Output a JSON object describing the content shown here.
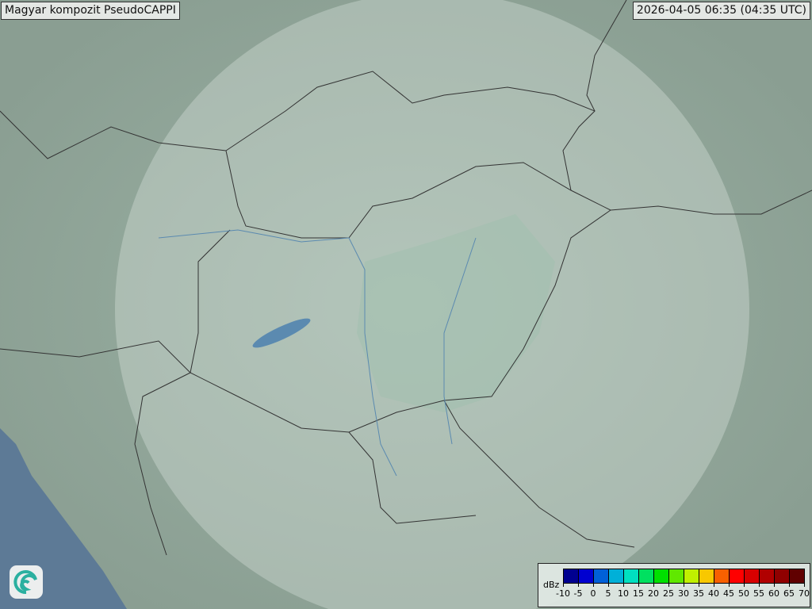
{
  "header": {
    "title": "Magyar kompozit  PseudoCAPPI",
    "timestamp": "2026-04-05 06:35 (04:35 UTC)"
  },
  "legend": {
    "unit": "dBz",
    "labels": [
      "-10",
      "-5",
      "0",
      "5",
      "10",
      "15",
      "20",
      "25",
      "30",
      "35",
      "40",
      "45",
      "50",
      "55",
      "60",
      "65",
      "70"
    ],
    "colors": [
      "#000090",
      "#0000d0",
      "#0060d8",
      "#00b0d8",
      "#00e0c0",
      "#00e060",
      "#00e000",
      "#60e800",
      "#c0f000",
      "#f8c800",
      "#f86000",
      "#ff0000",
      "#d80000",
      "#b00000",
      "#900000",
      "#600000"
    ]
  },
  "logo": {
    "icon": "swirl-logo-icon"
  },
  "map": {
    "land_color": "#8fa598",
    "sea_color": "#5d7a96",
    "coverage_color": "#dfe8e2"
  }
}
